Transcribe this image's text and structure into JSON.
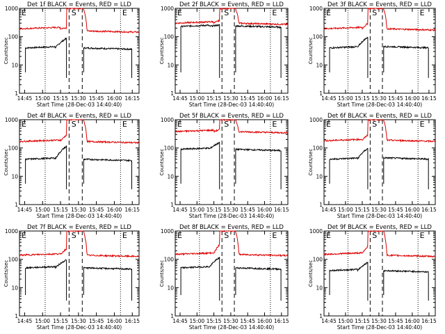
{
  "figure": {
    "start_label": "Start Time (28-Dec-03 14:40:40)",
    "ylabel": "Counts/sec"
  },
  "colors": {
    "events": "#000000",
    "lld": "#dd0000",
    "axes": "#000000"
  },
  "chart_data": [
    {
      "type": "line",
      "title": "Det 1f BLACK = Events, RED = LLD",
      "x_ticks": [
        "14:45",
        "15:00",
        "15:15",
        "15:30",
        "15:45",
        "16:00",
        "16:15"
      ],
      "y_ticks": [
        "1",
        "10",
        "100",
        "1000"
      ],
      "ylim": [
        1,
        1000
      ],
      "ylabel": "Counts/sec",
      "xlabel": "Start Time (28-Dec-03 14:40:40)",
      "markers": [
        "E",
        "S",
        "E"
      ],
      "series": [
        {
          "name": "Events",
          "color": "#000000",
          "pre": 40,
          "ramp": 90,
          "post": 40
        },
        {
          "name": "LLD",
          "color": "#dd0000",
          "pre": 190,
          "ramp": 210,
          "post": 160
        }
      ]
    },
    {
      "type": "line",
      "title": "Det 2f BLACK = Events, RED = LLD",
      "x_ticks": [
        "14:45",
        "15:00",
        "15:15",
        "15:30",
        "15:45",
        "16:00",
        "16:15"
      ],
      "y_ticks": [
        "1",
        "10",
        "100",
        "1000"
      ],
      "ylim": [
        1,
        1000
      ],
      "ylabel": "Counts/sec",
      "xlabel": "Start Time (28-Dec-03 14:40:40)",
      "markers": [
        "E",
        "S",
        "E"
      ],
      "series": [
        {
          "name": "Events",
          "color": "#000000",
          "pre": 230,
          "ramp": 260,
          "post": 240
        },
        {
          "name": "LLD",
          "color": "#dd0000",
          "pre": 300,
          "ramp": 380,
          "post": 300
        }
      ]
    },
    {
      "type": "line",
      "title": "Det 3f BLACK = Events, RED = LLD",
      "x_ticks": [
        "14:45",
        "15:00",
        "15:15",
        "15:30",
        "15:45",
        "16:00",
        "16:15"
      ],
      "y_ticks": [
        "1",
        "10",
        "100",
        "1000"
      ],
      "ylim": [
        1,
        1000
      ],
      "ylabel": "Counts/sec",
      "xlabel": "Start Time (28-Dec-03 14:40:40)",
      "markers": [
        "E",
        "S",
        "E"
      ],
      "series": [
        {
          "name": "Events",
          "color": "#000000",
          "pre": 40,
          "ramp": 100,
          "post": 45
        },
        {
          "name": "LLD",
          "color": "#dd0000",
          "pre": 190,
          "ramp": 300,
          "post": 190
        }
      ]
    },
    {
      "type": "line",
      "title": "Det 4f BLACK = Events, RED = LLD",
      "x_ticks": [
        "14:45",
        "15:00",
        "15:15",
        "15:30",
        "15:45",
        "16:00",
        "16:15"
      ],
      "y_ticks": [
        "1",
        "10",
        "100",
        "1000"
      ],
      "ylim": [
        1,
        1000
      ],
      "ylabel": "Counts/sec",
      "xlabel": "Start Time (28-Dec-03 14:40:40)",
      "markers": [
        "E",
        "S",
        "E"
      ],
      "series": [
        {
          "name": "Events",
          "color": "#000000",
          "pre": 40,
          "ramp": 120,
          "post": 40
        },
        {
          "name": "LLD",
          "color": "#dd0000",
          "pre": 170,
          "ramp": 300,
          "post": 170
        }
      ]
    },
    {
      "type": "line",
      "title": "Det 5f BLACK = Events, RED = LLD",
      "x_ticks": [
        "14:45",
        "15:00",
        "15:15",
        "15:30",
        "15:45",
        "16:00",
        "16:15"
      ],
      "y_ticks": [
        "1",
        "10",
        "100",
        "1000"
      ],
      "ylim": [
        1,
        1000
      ],
      "ylabel": "Counts/sec",
      "xlabel": "Start Time (28-Dec-03 14:40:40)",
      "markers": [
        "E",
        "S",
        "E"
      ],
      "series": [
        {
          "name": "Events",
          "color": "#000000",
          "pre": 90,
          "ramp": 160,
          "post": 90
        },
        {
          "name": "LLD",
          "color": "#dd0000",
          "pre": 380,
          "ramp": 450,
          "post": 380
        }
      ]
    },
    {
      "type": "line",
      "title": "Det 6f BLACK = Events, RED = LLD",
      "x_ticks": [
        "14:45",
        "15:00",
        "15:15",
        "15:30",
        "15:45",
        "16:00",
        "16:15"
      ],
      "y_ticks": [
        "1",
        "10",
        "100",
        "1000"
      ],
      "ylim": [
        1,
        1000
      ],
      "ylabel": "Counts/sec",
      "xlabel": "Start Time (28-Dec-03 14:40:40)",
      "markers": [
        "E",
        "S",
        "E"
      ],
      "series": [
        {
          "name": "Events",
          "color": "#000000",
          "pre": 40,
          "ramp": 100,
          "post": 45
        },
        {
          "name": "LLD",
          "color": "#dd0000",
          "pre": 180,
          "ramp": 300,
          "post": 190
        }
      ]
    },
    {
      "type": "line",
      "title": "Det 7f BLACK = Events, RED = LLD",
      "x_ticks": [
        "14:45",
        "15:00",
        "15:15",
        "15:30",
        "15:45",
        "16:00",
        "16:15"
      ],
      "y_ticks": [
        "1",
        "10",
        "100",
        "1000"
      ],
      "ylim": [
        1,
        1000
      ],
      "ylabel": "Counts/sec",
      "xlabel": "Start Time (28-Dec-03 14:40:40)",
      "markers": [
        "E",
        "S",
        "E"
      ],
      "series": [
        {
          "name": "Events",
          "color": "#000000",
          "pre": 50,
          "ramp": 100,
          "post": 50
        },
        {
          "name": "LLD",
          "color": "#dd0000",
          "pre": 140,
          "ramp": 250,
          "post": 140
        }
      ]
    },
    {
      "type": "line",
      "title": "Det 8f BLACK = Events, RED = LLD",
      "x_ticks": [
        "14:45",
        "15:00",
        "15:15",
        "15:30",
        "15:45",
        "16:00",
        "16:15"
      ],
      "y_ticks": [
        "1",
        "10",
        "100",
        "1000"
      ],
      "ylim": [
        1,
        1000
      ],
      "ylabel": "Counts/sec",
      "xlabel": "Start Time (28-Dec-03 14:40:40)",
      "markers": [
        "E",
        "S",
        "E"
      ],
      "series": [
        {
          "name": "Events",
          "color": "#000000",
          "pre": 50,
          "ramp": 120,
          "post": 50
        },
        {
          "name": "LLD",
          "color": "#dd0000",
          "pre": 150,
          "ramp": 350,
          "post": 150
        }
      ]
    },
    {
      "type": "line",
      "title": "Det 9f BLACK = Events, RED = LLD",
      "x_ticks": [
        "14:45",
        "15:00",
        "15:15",
        "15:30",
        "15:45",
        "16:00",
        "16:15"
      ],
      "y_ticks": [
        "1",
        "10",
        "100",
        "1000"
      ],
      "ylim": [
        1,
        1000
      ],
      "ylabel": "Counts/sec",
      "xlabel": "Start Time (28-Dec-03 14:40:40)",
      "markers": [
        "E",
        "S",
        "E"
      ],
      "series": [
        {
          "name": "Events",
          "color": "#000000",
          "pre": 40,
          "ramp": 80,
          "post": 40
        },
        {
          "name": "LLD",
          "color": "#dd0000",
          "pre": 150,
          "ramp": 300,
          "post": 140
        }
      ]
    }
  ]
}
